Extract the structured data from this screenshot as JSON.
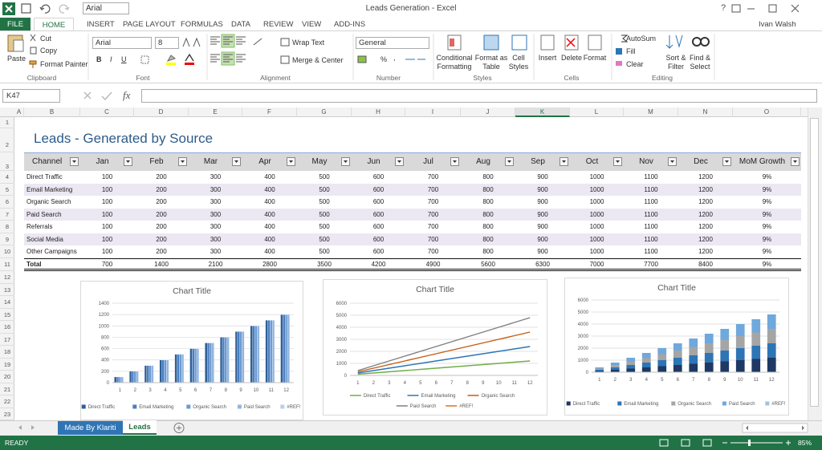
{
  "window": {
    "title": "Leads Generation - Excel",
    "font_box": "Arial",
    "help": "?"
  },
  "tabs": [
    "FILE",
    "HOME",
    "INSERT",
    "PAGE LAYOUT",
    "FORMULAS",
    "DATA",
    "REVIEW",
    "VIEW",
    "ADD-INS"
  ],
  "user": "Ivan Walsh",
  "ribbon": {
    "clipboard": {
      "label": "Clipboard",
      "paste": "Paste",
      "cut": "Cut",
      "copy": "Copy",
      "format_painter": "Format Painter"
    },
    "font": {
      "label": "Font",
      "name": "Arial",
      "size": "8",
      "bold": "B",
      "italic": "I",
      "underline": "U"
    },
    "alignment": {
      "label": "Alignment",
      "wrap": "Wrap Text",
      "merge": "Merge & Center"
    },
    "number": {
      "label": "Number",
      "format": "General",
      "percent": "%",
      "comma": ","
    },
    "styles": {
      "label": "Styles",
      "conditional": [
        "Conditional",
        "Formatting"
      ],
      "table": [
        "Format as",
        "Table"
      ],
      "cell": [
        "Cell",
        "Styles"
      ]
    },
    "cells": {
      "label": "Cells",
      "insert": "Insert",
      "delete": "Delete",
      "format": "Format"
    },
    "editing": {
      "label": "Editing",
      "autosum": "AutoSum",
      "fill": "Fill",
      "clear": "Clear",
      "sort": [
        "Sort &",
        "Filter"
      ],
      "find": [
        "Find &",
        "Select"
      ]
    }
  },
  "formula_bar": {
    "name_box": "K47",
    "fx": "fx"
  },
  "columns": [
    "A",
    "B",
    "C",
    "D",
    "E",
    "F",
    "G",
    "H",
    "I",
    "J",
    "K",
    "L",
    "M",
    "N",
    "O"
  ],
  "rows": [
    1,
    2,
    3,
    4,
    5,
    6,
    7,
    8,
    9,
    10,
    11,
    12,
    13,
    14,
    15,
    16,
    17,
    18,
    19,
    20,
    21,
    22,
    23
  ],
  "sheet": {
    "title": "Leads - Generated by Source",
    "header": [
      "Channel",
      "Jan",
      "Feb",
      "Mar",
      "Apr",
      "May",
      "Jun",
      "Jul",
      "Aug",
      "Sep",
      "Oct",
      "Nov",
      "Dec",
      "MoM Growth"
    ],
    "rows": [
      [
        "Direct Traffic",
        100,
        200,
        300,
        400,
        500,
        600,
        700,
        800,
        900,
        1000,
        1100,
        1200,
        "9%"
      ],
      [
        "Email Marketing",
        100,
        200,
        300,
        400,
        500,
        600,
        700,
        800,
        900,
        1000,
        1100,
        1200,
        "9%"
      ],
      [
        "Organic Search",
        100,
        200,
        300,
        400,
        500,
        600,
        700,
        800,
        900,
        1000,
        1100,
        1200,
        "9%"
      ],
      [
        "Paid Search",
        100,
        200,
        300,
        400,
        500,
        600,
        700,
        800,
        900,
        1000,
        1100,
        1200,
        "9%"
      ],
      [
        "Referrals",
        100,
        200,
        300,
        400,
        500,
        600,
        700,
        800,
        900,
        1000,
        1100,
        1200,
        "9%"
      ],
      [
        "Social Media",
        100,
        200,
        300,
        400,
        500,
        600,
        700,
        800,
        900,
        1000,
        1100,
        1200,
        "9%"
      ],
      [
        "Other Campaigns",
        100,
        200,
        300,
        400,
        500,
        600,
        700,
        800,
        900,
        1000,
        1100,
        1200,
        "9%"
      ]
    ],
    "total": [
      "Total",
      700,
      1400,
      2100,
      2800,
      3500,
      4200,
      4900,
      5600,
      6300,
      7000,
      7700,
      8400,
      "9%"
    ]
  },
  "chart_data": [
    {
      "type": "bar",
      "title": "Chart Title",
      "stacked": false,
      "categories": [
        1,
        2,
        3,
        4,
        5,
        6,
        7,
        8,
        9,
        10,
        11,
        12
      ],
      "ylim": [
        0,
        1400
      ],
      "yticks": [
        0,
        200,
        400,
        600,
        800,
        1000,
        1200,
        1400
      ],
      "grid": true,
      "series": [
        {
          "name": "Direct Traffic",
          "color": "#2e5f96",
          "values": [
            100,
            200,
            300,
            400,
            500,
            600,
            700,
            800,
            900,
            1000,
            1100,
            1200
          ]
        },
        {
          "name": "Email Marketing",
          "color": "#4a7fc0",
          "values": [
            100,
            200,
            300,
            400,
            500,
            600,
            700,
            800,
            900,
            1000,
            1100,
            1200
          ]
        },
        {
          "name": "Organic Search",
          "color": "#6d9bd1",
          "values": [
            100,
            200,
            300,
            400,
            500,
            600,
            700,
            800,
            900,
            1000,
            1100,
            1200
          ]
        },
        {
          "name": "Paid Search",
          "color": "#91b6e0",
          "values": [
            100,
            200,
            300,
            400,
            500,
            600,
            700,
            800,
            900,
            1000,
            1100,
            1200
          ]
        },
        {
          "name": "#REF!",
          "color": "#b7cfeb",
          "values": [
            null,
            null,
            null,
            null,
            null,
            null,
            null,
            null,
            null,
            null,
            null,
            null
          ]
        }
      ]
    },
    {
      "type": "line",
      "title": "Chart Title",
      "stacked": true,
      "categories": [
        1,
        2,
        3,
        4,
        5,
        6,
        7,
        8,
        9,
        10,
        11,
        12
      ],
      "ylim": [
        0,
        6000
      ],
      "yticks": [
        0,
        1000,
        2000,
        3000,
        4000,
        5000,
        6000
      ],
      "grid": true,
      "series": [
        {
          "name": "Direct Traffic",
          "color": "#70ad47",
          "values": [
            100,
            200,
            300,
            400,
            500,
            600,
            700,
            800,
            900,
            1000,
            1100,
            1200
          ]
        },
        {
          "name": "Email Marketing",
          "color": "#2e75b6",
          "values": [
            100,
            200,
            300,
            400,
            500,
            600,
            700,
            800,
            900,
            1000,
            1100,
            1200
          ]
        },
        {
          "name": "Organic Search",
          "color": "#c55a11",
          "values": [
            100,
            200,
            300,
            400,
            500,
            600,
            700,
            800,
            900,
            1000,
            1100,
            1200
          ]
        },
        {
          "name": "Paid Search",
          "color": "#7f7f7f",
          "values": [
            100,
            200,
            300,
            400,
            500,
            600,
            700,
            800,
            900,
            1000,
            1100,
            1200
          ]
        },
        {
          "name": "#REF!",
          "color": "#d9712b",
          "values": [
            null,
            null,
            null,
            null,
            null,
            null,
            null,
            null,
            null,
            null,
            null,
            null
          ]
        }
      ]
    },
    {
      "type": "bar",
      "title": "Chart Title",
      "stacked": true,
      "categories": [
        1,
        2,
        3,
        4,
        5,
        6,
        7,
        8,
        9,
        10,
        11,
        12
      ],
      "ylim": [
        0,
        6000
      ],
      "yticks": [
        0,
        1000,
        2000,
        3000,
        4000,
        5000,
        6000
      ],
      "grid": true,
      "series": [
        {
          "name": "Direct Traffic",
          "color": "#1f3864",
          "values": [
            100,
            200,
            300,
            400,
            500,
            600,
            700,
            800,
            900,
            1000,
            1100,
            1200
          ]
        },
        {
          "name": "Email Marketing",
          "color": "#2e75b6",
          "values": [
            100,
            200,
            300,
            400,
            500,
            600,
            700,
            800,
            900,
            1000,
            1100,
            1200
          ]
        },
        {
          "name": "Organic Search",
          "color": "#a5a5a5",
          "values": [
            100,
            200,
            300,
            400,
            500,
            600,
            700,
            800,
            900,
            1000,
            1100,
            1200
          ]
        },
        {
          "name": "Paid Search",
          "color": "#6fa8dc",
          "values": [
            100,
            200,
            300,
            400,
            500,
            600,
            700,
            800,
            900,
            1000,
            1100,
            1200
          ]
        },
        {
          "name": "#REF!",
          "color": "#9dc3e6",
          "values": [
            null,
            null,
            null,
            null,
            null,
            null,
            null,
            null,
            null,
            null,
            null,
            null
          ]
        }
      ]
    }
  ],
  "sheet_tabs": [
    "Made By Klariti",
    "Leads"
  ],
  "status": {
    "ready": "READY",
    "zoom": "85%"
  }
}
